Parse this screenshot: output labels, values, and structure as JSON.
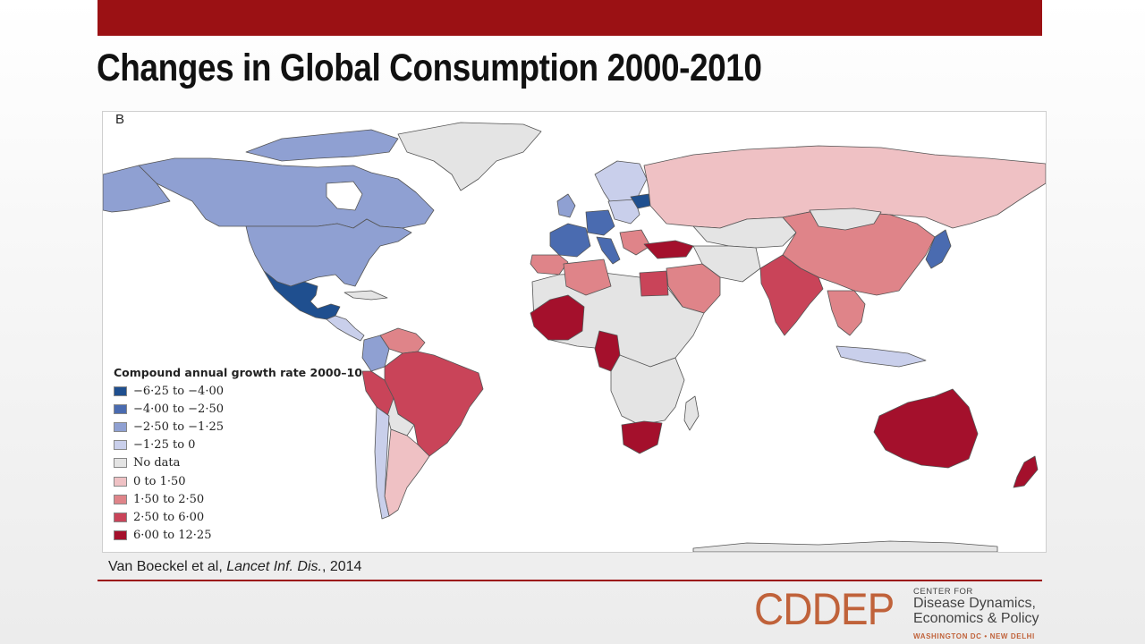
{
  "slide": {
    "title": "Changes in Global Consumption 2000-2010",
    "citation": {
      "authors": "Van Boeckel et al, ",
      "journal": "Lancet Inf. Dis.",
      "year": ", 2014"
    }
  },
  "map": {
    "panel_label": "B",
    "legend": {
      "title": "Compound annual growth rate 2000–10",
      "items": [
        {
          "label": "−6·25 to −4·00",
          "color": "#1f4f8f"
        },
        {
          "label": "−4·00 to −2·50",
          "color": "#4a6bb0"
        },
        {
          "label": "−2·50 to −1·25",
          "color": "#8fa0d2"
        },
        {
          "label": "−1·25 to 0",
          "color": "#c9cfeb"
        },
        {
          "label": "No data",
          "color": "#e4e4e4"
        },
        {
          "label": "0 to 1·50",
          "color": "#efc1c4"
        },
        {
          "label": "1·50 to 2·50",
          "color": "#df8489"
        },
        {
          "label": "2·50 to 6·00",
          "color": "#c94459"
        },
        {
          "label": "6·00 to 12·25",
          "color": "#a4102c"
        }
      ]
    },
    "countries": [
      {
        "name": "Canada",
        "class": "−2·50 to −1·25"
      },
      {
        "name": "United States",
        "class": "−2·50 to −1·25"
      },
      {
        "name": "Mexico",
        "class": "−6·25 to −4·00"
      },
      {
        "name": "Brazil",
        "class": "2·50 to 6·00"
      },
      {
        "name": "Russia",
        "class": "0 to 1·50"
      },
      {
        "name": "China",
        "class": "1·50 to 2·50"
      },
      {
        "name": "India",
        "class": "2·50 to 6·00"
      },
      {
        "name": "Australia",
        "class": "6·00 to 12·25"
      },
      {
        "name": "New Zealand",
        "class": "6·00 to 12·25"
      },
      {
        "name": "South Africa",
        "class": "6·00 to 12·25"
      },
      {
        "name": "Turkey",
        "class": "6·00 to 12·25"
      },
      {
        "name": "France",
        "class": "−4·00 to −2·50"
      },
      {
        "name": "Japan",
        "class": "−4·00 to −2·50"
      }
    ]
  },
  "logo": {
    "main": "CDDEP",
    "center_for": "CENTER FOR",
    "line1": "Disease Dynamics,",
    "line2": "Economics & Policy",
    "tagline": "WASHINGTON DC • NEW DELHI"
  }
}
